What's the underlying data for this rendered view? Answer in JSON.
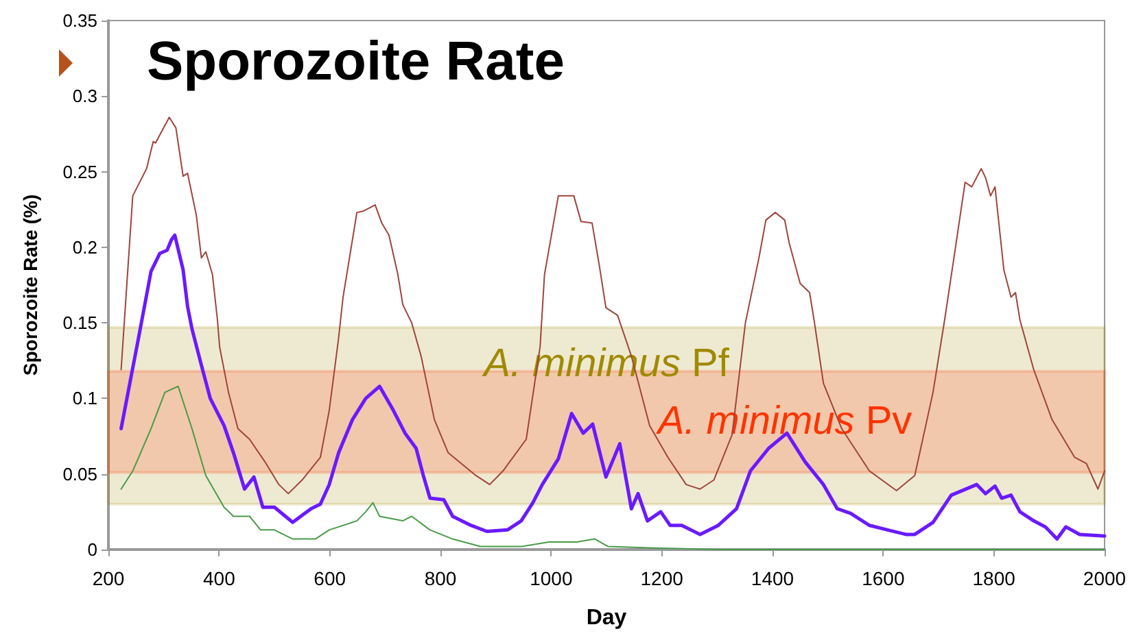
{
  "chart_data": {
    "type": "line",
    "title": "Sporozoite Rate",
    "xlabel": "Day",
    "ylabel": "Sporozoite Rate (%)",
    "xlim": [
      200,
      2000
    ],
    "xticks": [
      200,
      400,
      600,
      800,
      1000,
      1200,
      1400,
      1600,
      1800,
      2000
    ],
    "ylim": [
      0,
      0.35
    ],
    "yticks": [
      0,
      0.05,
      0.1,
      0.15,
      0.2,
      0.25,
      0.3,
      0.35
    ],
    "grid": false,
    "marker": "none",
    "line_style": "solid",
    "bands": [
      {
        "axis": "y",
        "from": 0.03,
        "to": 0.147,
        "label": "A. minimus Pf",
        "color": "#a08a00"
      },
      {
        "axis": "y",
        "from": 0.051,
        "to": 0.118,
        "label": "A. minimus Pv",
        "color": "#ff3300"
      }
    ],
    "series": [
      {
        "color": "#a0443c",
        "x": [
          223,
          244,
          269,
          281,
          285,
          310,
          322,
          335,
          343,
          359,
          368,
          376,
          388,
          397,
          401,
          417,
          434,
          455,
          483,
          508,
          525,
          550,
          583,
          599,
          616,
          624,
          649,
          661,
          682,
          694,
          707,
          723,
          732,
          748,
          765,
          789,
          814,
          864,
          889,
          913,
          955,
          980,
          988,
          1013,
          1021,
          1041,
          1054,
          1074,
          1087,
          1099,
          1120,
          1145,
          1178,
          1211,
          1244,
          1269,
          1294,
          1327,
          1351,
          1376,
          1388,
          1405,
          1422,
          1430,
          1450,
          1467,
          1475,
          1492,
          1525,
          1575,
          1624,
          1657,
          1690,
          1711,
          1727,
          1748,
          1760,
          1777,
          1785,
          1794,
          1802,
          1818,
          1831,
          1839,
          1847,
          1872,
          1905,
          1946,
          1967,
          1988,
          2000
        ],
        "values": [
          0.119,
          0.234,
          0.252,
          0.27,
          0.269,
          0.286,
          0.279,
          0.247,
          0.249,
          0.221,
          0.193,
          0.197,
          0.182,
          0.152,
          0.134,
          0.104,
          0.08,
          0.073,
          0.058,
          0.043,
          0.037,
          0.046,
          0.061,
          0.092,
          0.14,
          0.167,
          0.223,
          0.224,
          0.228,
          0.216,
          0.208,
          0.182,
          0.162,
          0.15,
          0.128,
          0.086,
          0.064,
          0.049,
          0.043,
          0.052,
          0.073,
          0.134,
          0.182,
          0.234,
          0.234,
          0.234,
          0.217,
          0.216,
          0.188,
          0.16,
          0.155,
          0.128,
          0.082,
          0.061,
          0.043,
          0.04,
          0.046,
          0.076,
          0.15,
          0.194,
          0.218,
          0.223,
          0.218,
          0.203,
          0.176,
          0.17,
          0.152,
          0.11,
          0.08,
          0.052,
          0.039,
          0.049,
          0.104,
          0.152,
          0.191,
          0.243,
          0.24,
          0.252,
          0.246,
          0.234,
          0.24,
          0.185,
          0.167,
          0.17,
          0.152,
          0.119,
          0.086,
          0.061,
          0.057,
          0.04,
          0.052
        ]
      },
      {
        "color": "#6a1aff",
        "x": [
          223,
          256,
          277,
          293,
          306,
          314,
          320,
          335,
          343,
          351,
          368,
          384,
          409,
          426,
          446,
          463,
          479,
          500,
          533,
          566,
          583,
          599,
          616,
          641,
          665,
          690,
          715,
          736,
          756,
          769,
          781,
          806,
          822,
          855,
          884,
          921,
          946,
          967,
          984,
          1013,
          1037,
          1058,
          1075,
          1099,
          1124,
          1145,
          1157,
          1174,
          1198,
          1215,
          1236,
          1269,
          1302,
          1335,
          1360,
          1393,
          1426,
          1459,
          1492,
          1517,
          1541,
          1575,
          1608,
          1641,
          1657,
          1690,
          1723,
          1769,
          1785,
          1802,
          1814,
          1831,
          1847,
          1872,
          1893,
          1914,
          1930,
          1955,
          2000
        ],
        "values": [
          0.08,
          0.143,
          0.184,
          0.196,
          0.198,
          0.205,
          0.208,
          0.185,
          0.161,
          0.146,
          0.122,
          0.1,
          0.082,
          0.064,
          0.04,
          0.048,
          0.028,
          0.028,
          0.018,
          0.027,
          0.03,
          0.043,
          0.064,
          0.086,
          0.1,
          0.108,
          0.092,
          0.077,
          0.067,
          0.049,
          0.034,
          0.033,
          0.022,
          0.016,
          0.012,
          0.013,
          0.019,
          0.031,
          0.043,
          0.06,
          0.09,
          0.077,
          0.083,
          0.048,
          0.07,
          0.027,
          0.037,
          0.019,
          0.025,
          0.016,
          0.016,
          0.01,
          0.016,
          0.027,
          0.052,
          0.067,
          0.077,
          0.058,
          0.043,
          0.027,
          0.024,
          0.016,
          0.013,
          0.01,
          0.01,
          0.018,
          0.036,
          0.043,
          0.037,
          0.042,
          0.034,
          0.036,
          0.025,
          0.019,
          0.015,
          0.007,
          0.015,
          0.01,
          0.009
        ]
      },
      {
        "color": "#4a9a4a",
        "x": [
          223,
          244,
          277,
          302,
          326,
          351,
          376,
          409,
          426,
          455,
          475,
          500,
          533,
          574,
          599,
          649,
          665,
          678,
          690,
          732,
          748,
          781,
          822,
          872,
          946,
          996,
          1046,
          1079,
          1103,
          1186,
          1300,
          1500,
          1800,
          2000
        ],
        "values": [
          0.04,
          0.052,
          0.08,
          0.104,
          0.108,
          0.08,
          0.049,
          0.028,
          0.022,
          0.022,
          0.013,
          0.013,
          0.007,
          0.007,
          0.013,
          0.019,
          0.025,
          0.031,
          0.022,
          0.019,
          0.022,
          0.013,
          0.007,
          0.002,
          0.002,
          0.005,
          0.005,
          0.007,
          0.002,
          0.001,
          0,
          0,
          0,
          0
        ]
      }
    ]
  }
}
